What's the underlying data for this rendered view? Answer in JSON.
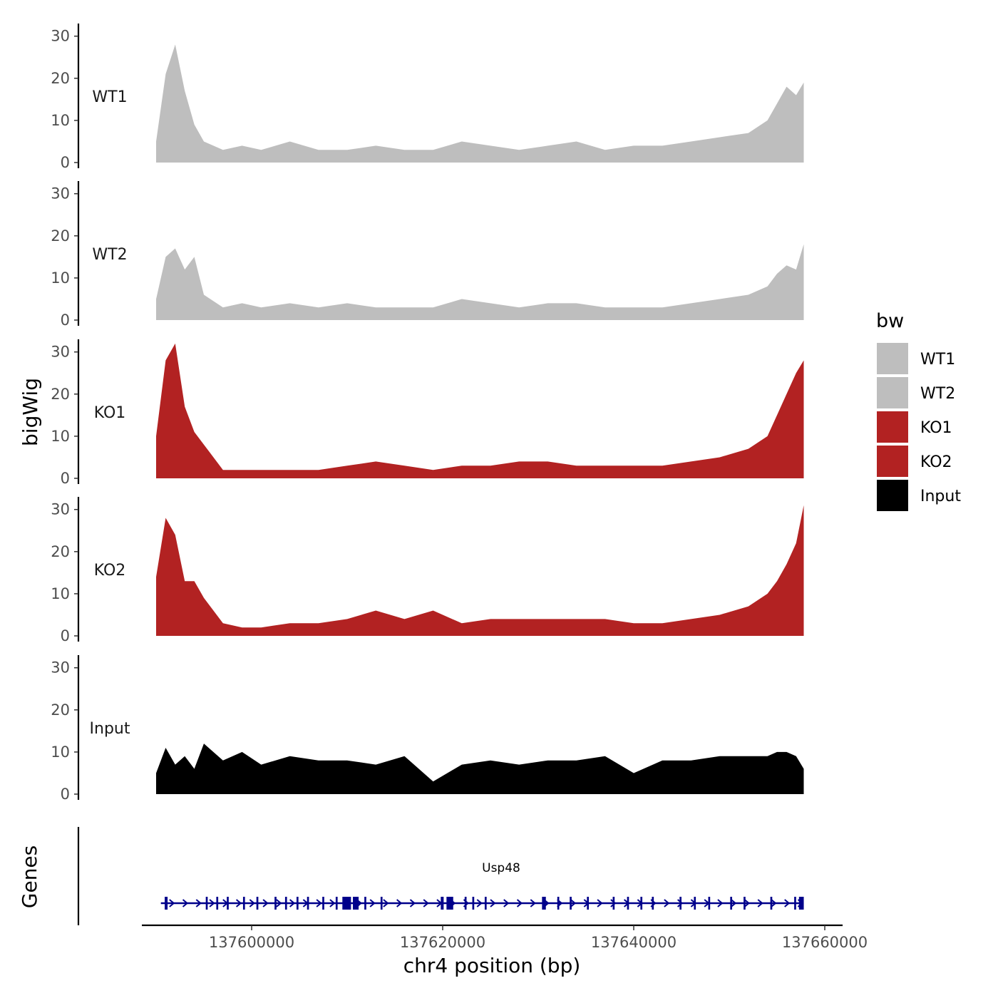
{
  "chart_data": {
    "type": "area",
    "ylabel": "bigWig",
    "xlabel": "chr4 position (bp)",
    "y_ticks": [
      0,
      10,
      20,
      30
    ],
    "ylim": [
      0,
      33
    ],
    "x_ticks": [
      137600000,
      137620000,
      137640000,
      137660000
    ],
    "x_tick_labels": [
      "137600000",
      "137620000",
      "137640000",
      "137660000"
    ],
    "xlim": [
      137590000,
      137662000
    ],
    "colors": {
      "WT1": "#bebebe",
      "WT2": "#bebebe",
      "KO1": "#b22222",
      "KO2": "#b22222",
      "Input": "#000000",
      "gene": "#00008b"
    },
    "legend": {
      "title": "bw",
      "position": "right",
      "entries": [
        "WT1",
        "WT2",
        "KO1",
        "KO2",
        "Input"
      ]
    },
    "series": [
      {
        "name": "WT1",
        "x": [
          137590000,
          137591000,
          137592000,
          137593000,
          137594000,
          137595000,
          137597000,
          137599000,
          137601000,
          137604000,
          137607000,
          137610000,
          137613000,
          137616000,
          137619000,
          137622000,
          137625000,
          137628000,
          137631000,
          137634000,
          137637000,
          137640000,
          137643000,
          137646000,
          137649000,
          137652000,
          137654000,
          137655000,
          137656000,
          137657000,
          137657800
        ],
        "values": [
          5,
          21,
          28,
          17,
          9,
          5,
          3,
          4,
          3,
          5,
          3,
          3,
          4,
          3,
          3,
          5,
          4,
          3,
          4,
          5,
          3,
          4,
          4,
          5,
          6,
          7,
          10,
          14,
          18,
          16,
          19
        ]
      },
      {
        "name": "WT2",
        "x": [
          137590000,
          137591000,
          137592000,
          137593000,
          137594000,
          137595000,
          137597000,
          137599000,
          137601000,
          137604000,
          137607000,
          137610000,
          137613000,
          137616000,
          137619000,
          137622000,
          137625000,
          137628000,
          137631000,
          137634000,
          137637000,
          137640000,
          137643000,
          137646000,
          137649000,
          137652000,
          137654000,
          137655000,
          137656000,
          137657000,
          137657800
        ],
        "values": [
          5,
          15,
          17,
          12,
          15,
          6,
          3,
          4,
          3,
          4,
          3,
          4,
          3,
          3,
          3,
          5,
          4,
          3,
          4,
          4,
          3,
          3,
          3,
          4,
          5,
          6,
          8,
          11,
          13,
          12,
          18
        ]
      },
      {
        "name": "KO1",
        "x": [
          137590000,
          137591000,
          137592000,
          137593000,
          137594000,
          137595000,
          137597000,
          137599000,
          137601000,
          137604000,
          137607000,
          137610000,
          137613000,
          137616000,
          137619000,
          137622000,
          137625000,
          137628000,
          137631000,
          137634000,
          137637000,
          137640000,
          137643000,
          137646000,
          137649000,
          137652000,
          137654000,
          137655000,
          137656000,
          137657000,
          137657800
        ],
        "values": [
          10,
          28,
          32,
          17,
          11,
          8,
          2,
          2,
          2,
          2,
          2,
          3,
          4,
          3,
          2,
          3,
          3,
          4,
          4,
          3,
          3,
          3,
          3,
          4,
          5,
          7,
          10,
          15,
          20,
          25,
          28
        ]
      },
      {
        "name": "KO2",
        "x": [
          137590000,
          137591000,
          137592000,
          137593000,
          137594000,
          137595000,
          137597000,
          137599000,
          137601000,
          137604000,
          137607000,
          137610000,
          137613000,
          137616000,
          137619000,
          137622000,
          137625000,
          137628000,
          137631000,
          137634000,
          137637000,
          137640000,
          137643000,
          137646000,
          137649000,
          137652000,
          137654000,
          137655000,
          137656000,
          137657000,
          137657800
        ],
        "values": [
          14,
          28,
          24,
          13,
          13,
          9,
          3,
          2,
          2,
          3,
          3,
          4,
          6,
          4,
          6,
          3,
          4,
          4,
          4,
          4,
          4,
          3,
          3,
          4,
          5,
          7,
          10,
          13,
          17,
          22,
          31
        ]
      },
      {
        "name": "Input",
        "x": [
          137590000,
          137591000,
          137592000,
          137593000,
          137594000,
          137595000,
          137597000,
          137599000,
          137601000,
          137604000,
          137607000,
          137610000,
          137613000,
          137616000,
          137619000,
          137622000,
          137625000,
          137628000,
          137631000,
          137634000,
          137637000,
          137640000,
          137643000,
          137646000,
          137649000,
          137652000,
          137654000,
          137655000,
          137656000,
          137657000,
          137657800
        ],
        "values": [
          5,
          11,
          7,
          9,
          6,
          12,
          8,
          10,
          7,
          9,
          8,
          8,
          7,
          9,
          3,
          7,
          8,
          7,
          8,
          8,
          9,
          5,
          8,
          8,
          9,
          9,
          9,
          10,
          10,
          9,
          6
        ]
      }
    ],
    "genes_track": {
      "label": "Genes",
      "genes": [
        {
          "name": "Usp48",
          "start": 137590500,
          "end": 137657800,
          "strand": "+",
          "exons": [
            [
              137590900,
              137591200
            ],
            [
              137595200,
              137595400
            ],
            [
              137596300,
              137596500
            ],
            [
              137597400,
              137597600
            ],
            [
              137599100,
              137599300
            ],
            [
              137600500,
              137600700
            ],
            [
              137602400,
              137602600
            ],
            [
              137603500,
              137603700
            ],
            [
              137604700,
              137604900
            ],
            [
              137605800,
              137606000
            ],
            [
              137607400,
              137607600
            ],
            [
              137608800,
              137609000
            ],
            [
              137609500,
              137610400
            ],
            [
              137610600,
              137611200
            ],
            [
              137611800,
              137612000
            ],
            [
              137613500,
              137613700
            ],
            [
              137619800,
              137620100
            ],
            [
              137620400,
              137621100
            ],
            [
              137622300,
              137622500
            ],
            [
              137623100,
              137623300
            ],
            [
              137624400,
              137624600
            ],
            [
              137630400,
              137630800
            ],
            [
              137632000,
              137632200
            ],
            [
              137633300,
              137633500
            ],
            [
              137635100,
              137635300
            ],
            [
              137637800,
              137638000
            ],
            [
              137639300,
              137639500
            ],
            [
              137640700,
              137640900
            ],
            [
              137641900,
              137642100
            ],
            [
              137644800,
              137645000
            ],
            [
              137646300,
              137646500
            ],
            [
              137647800,
              137648000
            ],
            [
              137650100,
              137650300
            ],
            [
              137651500,
              137651700
            ],
            [
              137654300,
              137654500
            ],
            [
              137656800,
              137657000
            ],
            [
              137657300,
              137657800
            ]
          ]
        }
      ]
    }
  }
}
